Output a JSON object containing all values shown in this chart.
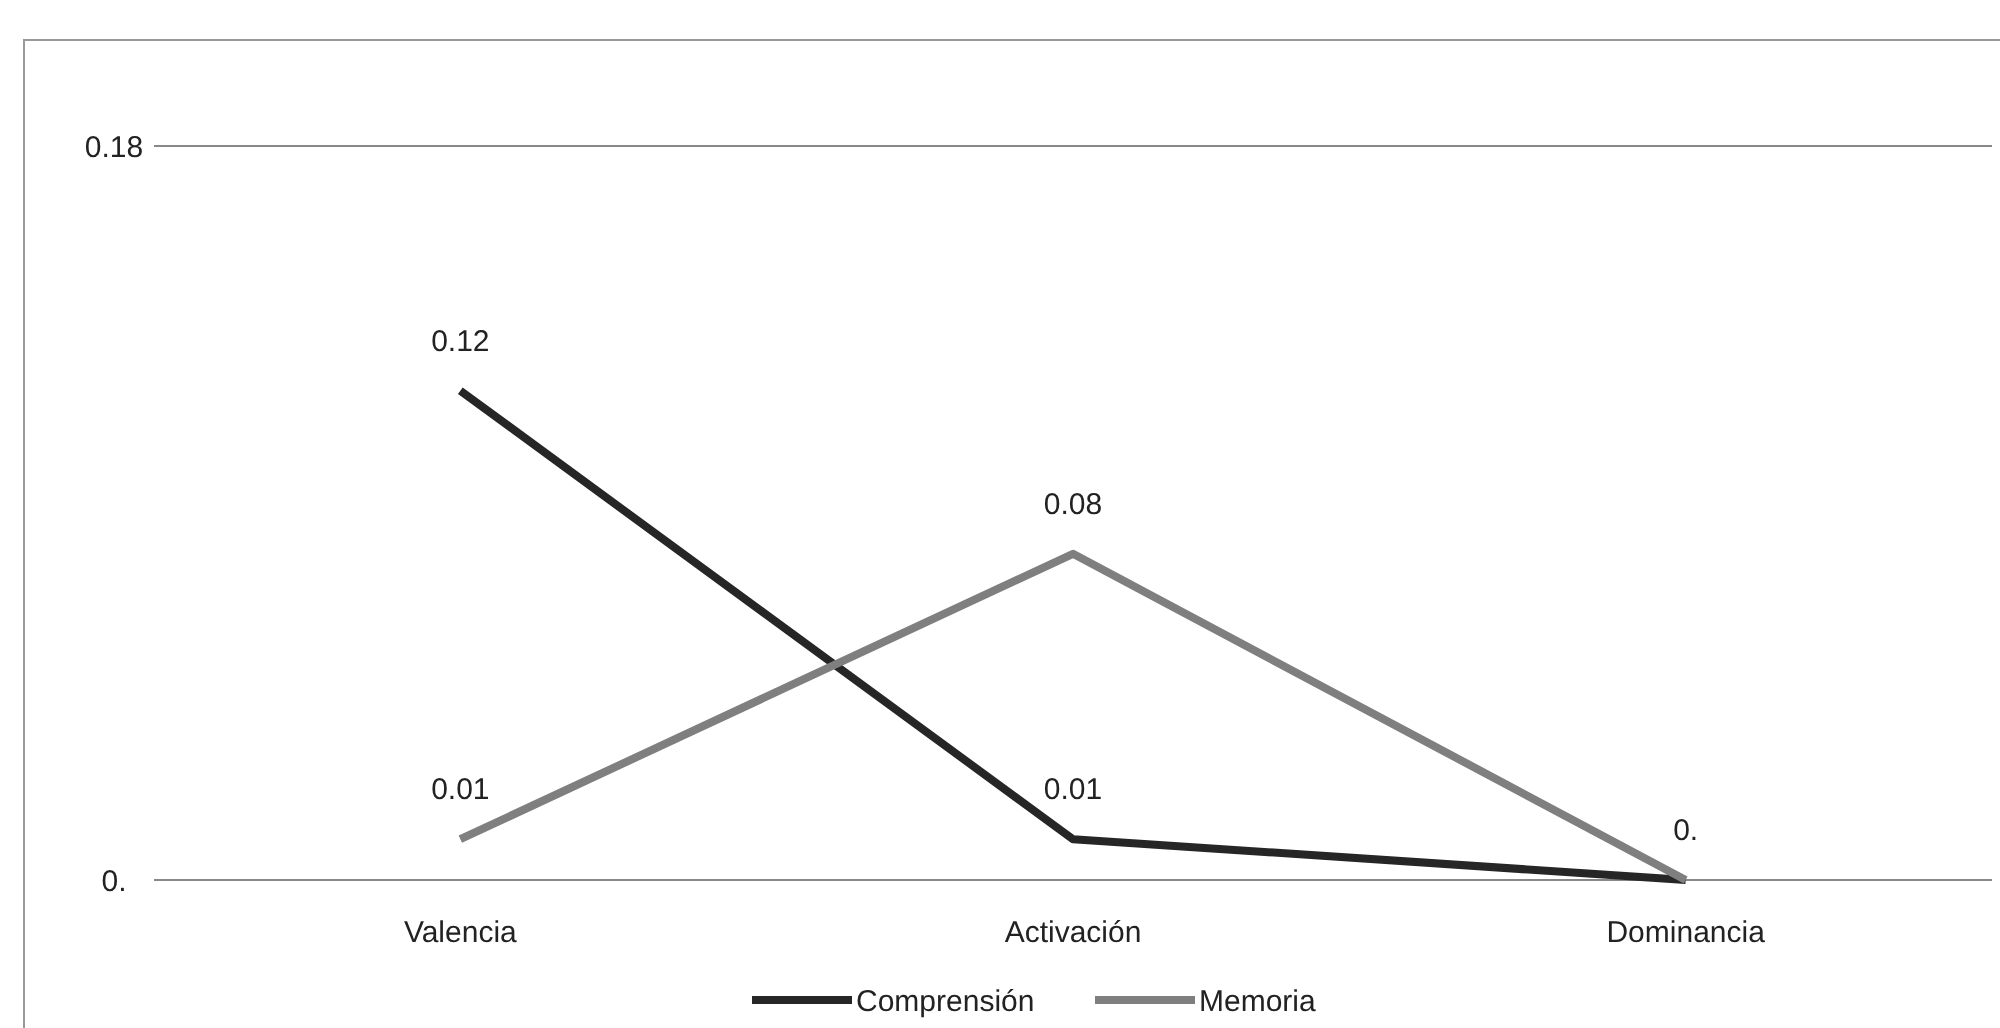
{
  "chart_data": {
    "type": "line",
    "categories": [
      "Valencia",
      "Activación",
      "Dominancia"
    ],
    "series": [
      {
        "name": "Comprensión",
        "color": "#262626",
        "values": [
          0.12,
          0.01,
          0
        ],
        "value_labels": [
          "0.12",
          "0.01",
          "0."
        ]
      },
      {
        "name": "Memoria",
        "color": "#7f7f7f",
        "values": [
          0.01,
          0.08,
          0
        ],
        "value_labels": [
          "0.01",
          "0.08",
          null
        ]
      }
    ],
    "ylim": [
      0,
      0.18
    ],
    "yticks": [
      {
        "value": 0,
        "label": "0."
      },
      0.18
    ],
    "legend": "bottom",
    "marker": "none",
    "line_style": "solid"
  }
}
